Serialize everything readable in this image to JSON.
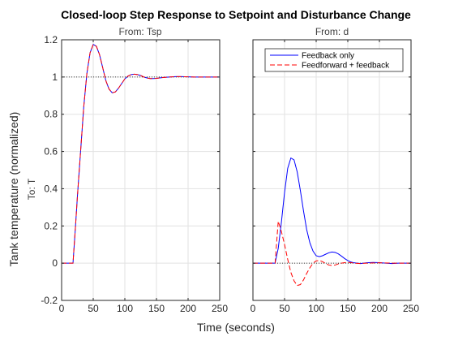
{
  "chart_data": {
    "type": "line",
    "title": "Closed-loop Step Response to Setpoint and Disturbance Change",
    "ylabel": "Tank temperature (normalized)",
    "output_label": "To: T",
    "xlabel": "Time (seconds)",
    "xlim": [
      0,
      250
    ],
    "ylim": [
      -0.2,
      1.2
    ],
    "xticks": [
      0,
      50,
      100,
      150,
      200,
      250
    ],
    "yticks": [
      -0.2,
      0,
      0.2,
      0.4,
      0.6,
      0.8,
      1,
      1.2
    ],
    "xtick_labels": [
      "0",
      "50",
      "100",
      "150",
      "200",
      "250"
    ],
    "ytick_labels": [
      "-0.2",
      "0",
      "0.2",
      "0.4",
      "0.6",
      "0.8",
      "1",
      "1.2"
    ],
    "grid": true,
    "legend": {
      "placement": "top-right of right panel",
      "entries": [
        "Feedback only",
        "Feedforward + feedback"
      ]
    },
    "panels": [
      {
        "subtitle": "From: Tsp",
        "reference_line": 1,
        "series": [
          {
            "name": "Feedback only",
            "color": "#0000ff",
            "dash": "solid",
            "x": [
              0,
              18,
              22,
              25,
              30,
              35,
              40,
              45,
              50,
              55,
              60,
              65,
              70,
              75,
              80,
              85,
              90,
              95,
              100,
              105,
              110,
              115,
              120,
              125,
              130,
              135,
              140,
              145,
              150,
              155,
              160,
              170,
              180,
              190,
              200,
              210,
              220,
              230,
              240,
              250
            ],
            "y": [
              0,
              0,
              0.2,
              0.36,
              0.6,
              0.84,
              1.02,
              1.13,
              1.175,
              1.165,
              1.12,
              1.05,
              0.98,
              0.935,
              0.915,
              0.92,
              0.94,
              0.965,
              0.99,
              1.005,
              1.013,
              1.015,
              1.013,
              1.008,
              1.0,
              0.995,
              0.992,
              0.992,
              0.993,
              0.995,
              0.997,
              1.0,
              1.002,
              1.002,
              1.001,
              1.0,
              1.0,
              1.0,
              1.0,
              1.0
            ]
          },
          {
            "name": "Feedforward + feedback",
            "color": "#ff0000",
            "dash": "dashed",
            "x": [
              0,
              18,
              22,
              25,
              30,
              35,
              40,
              45,
              50,
              55,
              60,
              65,
              70,
              75,
              80,
              85,
              90,
              95,
              100,
              105,
              110,
              115,
              120,
              125,
              130,
              135,
              140,
              145,
              150,
              155,
              160,
              170,
              180,
              190,
              200,
              210,
              220,
              230,
              240,
              250
            ],
            "y": [
              0,
              0,
              0.2,
              0.36,
              0.6,
              0.84,
              1.02,
              1.13,
              1.175,
              1.165,
              1.12,
              1.05,
              0.98,
              0.935,
              0.915,
              0.92,
              0.94,
              0.965,
              0.99,
              1.005,
              1.013,
              1.015,
              1.013,
              1.008,
              1.0,
              0.995,
              0.992,
              0.992,
              0.993,
              0.995,
              0.997,
              1.0,
              1.002,
              1.002,
              1.001,
              1.0,
              1.0,
              1.0,
              1.0,
              1.0
            ]
          }
        ]
      },
      {
        "subtitle": "From: d",
        "reference_line": 0,
        "series": [
          {
            "name": "Feedback only",
            "color": "#0000ff",
            "dash": "solid",
            "x": [
              0,
              35,
              40,
              45,
              50,
              55,
              60,
              65,
              70,
              75,
              80,
              85,
              90,
              95,
              100,
              105,
              110,
              115,
              120,
              125,
              130,
              135,
              140,
              145,
              150,
              155,
              160,
              170,
              180,
              190,
              200,
              210,
              220,
              230,
              240,
              250
            ],
            "y": [
              0,
              0,
              0.08,
              0.22,
              0.38,
              0.51,
              0.565,
              0.555,
              0.49,
              0.39,
              0.28,
              0.18,
              0.11,
              0.065,
              0.04,
              0.035,
              0.04,
              0.048,
              0.056,
              0.06,
              0.058,
              0.05,
              0.038,
              0.025,
              0.014,
              0.006,
              0.002,
              -0.002,
              0.002,
              0.004,
              0.003,
              0.0,
              -0.002,
              0.0,
              0.0,
              0.0
            ]
          },
          {
            "name": "Feedforward + feedback",
            "color": "#ff0000",
            "dash": "dashed",
            "x": [
              0,
              35,
              40,
              45,
              50,
              55,
              60,
              65,
              70,
              75,
              80,
              85,
              90,
              95,
              100,
              105,
              110,
              115,
              120,
              125,
              130,
              135,
              140,
              145,
              150,
              155,
              160,
              170,
              180,
              190,
              200,
              210,
              220,
              230,
              240,
              250
            ],
            "y": [
              0,
              0,
              0.225,
              0.17,
              0.1,
              0.02,
              -0.05,
              -0.095,
              -0.12,
              -0.115,
              -0.09,
              -0.055,
              -0.025,
              0.0,
              0.012,
              0.015,
              0.008,
              -0.002,
              -0.01,
              -0.012,
              -0.01,
              -0.004,
              0.0,
              0.003,
              0.004,
              0.003,
              0.0,
              -0.002,
              0.0,
              0.001,
              0.002,
              0.001,
              0.0,
              0.0,
              0.0,
              0.0
            ]
          }
        ]
      }
    ]
  }
}
